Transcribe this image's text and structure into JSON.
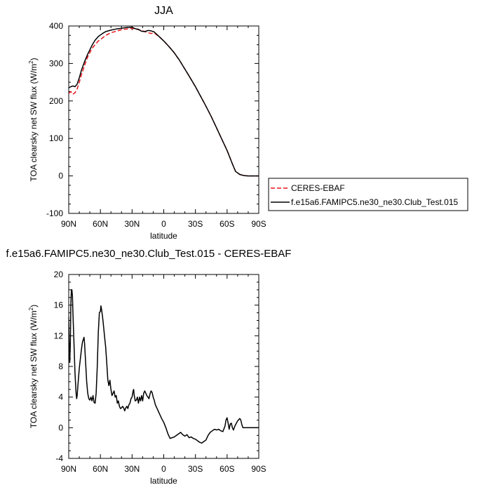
{
  "chart_data": [
    {
      "type": "line",
      "title": "JJA",
      "xlabel": "latitude",
      "ylabel": "TOA clearsky net SW flux (W/m",
      "ylabel_sup": "2",
      "ylabel_close": ")",
      "xlim": [
        90,
        -90
      ],
      "ylim": [
        -100,
        400
      ],
      "xticks": [
        90,
        60,
        30,
        0,
        -30,
        -60,
        -90
      ],
      "xtick_labels": [
        "90N",
        "60N",
        "30N",
        "0",
        "30S",
        "60S",
        "90S"
      ],
      "yticks": [
        -100,
        0,
        100,
        200,
        300,
        400
      ],
      "ytick_labels": [
        "-100",
        "0",
        "100",
        "200",
        "300",
        "400"
      ],
      "legend": "outside-right",
      "series": [
        {
          "name": "CERES-EBAF",
          "color": "#e8141c",
          "dash": true,
          "points": [
            [
              90,
              220
            ],
            [
              88,
              225
            ],
            [
              86,
              218
            ],
            [
              84,
              222
            ],
            [
              82,
              232
            ],
            [
              80,
              250
            ],
            [
              78,
              270
            ],
            [
              75,
              295
            ],
            [
              72,
              318
            ],
            [
              68,
              340
            ],
            [
              65,
              350
            ],
            [
              62,
              360
            ],
            [
              58,
              368
            ],
            [
              55,
              375
            ],
            [
              50,
              382
            ],
            [
              45,
              386
            ],
            [
              40,
              390
            ],
            [
              35,
              392
            ],
            [
              30,
              394
            ],
            [
              27,
              392
            ],
            [
              24,
              390
            ],
            [
              21,
              388
            ],
            [
              18,
              385
            ],
            [
              15,
              382
            ],
            [
              12,
              380
            ],
            [
              9,
              381
            ],
            [
              6,
              375
            ],
            [
              3,
              368
            ],
            [
              0,
              360
            ],
            [
              -5,
              345
            ],
            [
              -10,
              328
            ],
            [
              -15,
              308
            ],
            [
              -20,
              285
            ],
            [
              -25,
              262
            ],
            [
              -30,
              238
            ],
            [
              -35,
              212
            ],
            [
              -40,
              186
            ],
            [
              -45,
              158
            ],
            [
              -50,
              128
            ],
            [
              -55,
              98
            ],
            [
              -60,
              68
            ],
            [
              -65,
              32
            ],
            [
              -68,
              12
            ],
            [
              -72,
              4
            ],
            [
              -76,
              1
            ],
            [
              -80,
              0
            ],
            [
              -85,
              0
            ],
            [
              -90,
              0
            ]
          ]
        },
        {
          "name": "f.e15a6.FAMIPC5.ne30_ne30.Club_Test.015",
          "color": "#000000",
          "dash": false,
          "points": [
            [
              90,
              235
            ],
            [
              88,
              238
            ],
            [
              86,
              240
            ],
            [
              84,
              238
            ],
            [
              82,
              245
            ],
            [
              80,
              262
            ],
            [
              78,
              282
            ],
            [
              75,
              305
            ],
            [
              72,
              325
            ],
            [
              68,
              348
            ],
            [
              65,
              362
            ],
            [
              62,
              372
            ],
            [
              58,
              380
            ],
            [
              55,
              385
            ],
            [
              50,
              389
            ],
            [
              45,
              392
            ],
            [
              40,
              394
            ],
            [
              35,
              396
            ],
            [
              30,
              397
            ],
            [
              28,
              394
            ],
            [
              26,
              392
            ],
            [
              24,
              391
            ],
            [
              21,
              386
            ],
            [
              18,
              385
            ],
            [
              15,
              388
            ],
            [
              12,
              387
            ],
            [
              9,
              384
            ],
            [
              6,
              376
            ],
            [
              3,
              368
            ],
            [
              0,
              360
            ],
            [
              -5,
              345
            ],
            [
              -10,
              328
            ],
            [
              -15,
              308
            ],
            [
              -20,
              285
            ],
            [
              -25,
              262
            ],
            [
              -30,
              238
            ],
            [
              -35,
              212
            ],
            [
              -40,
              186
            ],
            [
              -45,
              158
            ],
            [
              -50,
              128
            ],
            [
              -55,
              98
            ],
            [
              -60,
              68
            ],
            [
              -65,
              32
            ],
            [
              -68,
              12
            ],
            [
              -72,
              4
            ],
            [
              -76,
              1
            ],
            [
              -80,
              0
            ],
            [
              -85,
              0
            ],
            [
              -90,
              0
            ]
          ]
        }
      ]
    },
    {
      "type": "line",
      "title": "f.e15a6.FAMIPC5.ne30_ne30.Club_Test.015 - CERES-EBAF",
      "xlabel": "latitude",
      "ylabel": "TOA clearsky net SW flux (W/m",
      "ylabel_sup": "2",
      "ylabel_close": ")",
      "xlim": [
        90,
        -90
      ],
      "ylim": [
        -4,
        20
      ],
      "xticks": [
        90,
        60,
        30,
        0,
        -30,
        -60,
        -90
      ],
      "xtick_labels": [
        "90N",
        "60N",
        "30N",
        "0",
        "30S",
        "60S",
        "90S"
      ],
      "yticks": [
        -4,
        0,
        4,
        8,
        12,
        16,
        20
      ],
      "ytick_labels": [
        "-4",
        "0",
        "4",
        "8",
        "12",
        "16",
        "20"
      ],
      "legend": "none",
      "series": [
        {
          "color": "#000000",
          "dash": false,
          "points": [
            [
              90,
              14.5
            ],
            [
              89.5,
              10
            ],
            [
              89,
              8.5
            ],
            [
              88.5,
              11
            ],
            [
              88,
              16
            ],
            [
              87.5,
              18
            ],
            [
              87,
              18
            ],
            [
              86.5,
              17.2
            ],
            [
              86,
              15
            ],
            [
              85,
              11
            ],
            [
              84,
              7
            ],
            [
              83,
              4.5
            ],
            [
              82.5,
              3.8
            ],
            [
              82,
              4.2
            ],
            [
              81,
              6
            ],
            [
              80,
              7.8
            ],
            [
              79,
              9
            ],
            [
              78,
              10.2
            ],
            [
              77,
              11.2
            ],
            [
              76,
              11.6
            ],
            [
              75.5,
              11.8
            ],
            [
              75,
              11
            ],
            [
              74,
              8.5
            ],
            [
              73,
              6
            ],
            [
              72,
              4.5
            ],
            [
              71,
              3.8
            ],
            [
              70,
              3.6
            ],
            [
              69,
              4
            ],
            [
              68,
              3.5
            ],
            [
              67,
              4.2
            ],
            [
              66,
              3.3
            ],
            [
              65,
              3.2
            ],
            [
              64,
              4.5
            ],
            [
              63,
              8
            ],
            [
              62,
              12.5
            ],
            [
              61,
              15
            ],
            [
              60,
              15.2
            ],
            [
              59.5,
              15.9
            ],
            [
              59,
              15.5
            ],
            [
              58,
              14.5
            ],
            [
              57,
              13.2
            ],
            [
              56,
              11.8
            ],
            [
              55,
              10.5
            ],
            [
              54,
              8.5
            ],
            [
              53,
              6.3
            ],
            [
              52,
              5.5
            ],
            [
              51,
              6.2
            ],
            [
              50,
              5
            ],
            [
              49,
              4.2
            ],
            [
              48,
              4.5
            ],
            [
              47,
              4.8
            ],
            [
              46,
              4
            ],
            [
              45,
              4.2
            ],
            [
              44,
              3.2
            ],
            [
              43,
              3.5
            ],
            [
              42,
              2.8
            ],
            [
              41,
              2.5
            ],
            [
              40,
              2.6
            ],
            [
              39,
              2.8
            ],
            [
              38,
              2.6
            ],
            [
              37,
              2.2
            ],
            [
              36,
              2.6
            ],
            [
              35,
              2.8
            ],
            [
              34,
              2.5
            ],
            [
              33,
              3
            ],
            [
              32,
              3.2
            ],
            [
              31,
              3.8
            ],
            [
              30,
              4
            ],
            [
              29,
              4.8
            ],
            [
              28.5,
              5
            ],
            [
              28,
              4.3
            ],
            [
              27,
              3.5
            ],
            [
              26,
              3.6
            ],
            [
              25,
              4
            ],
            [
              24,
              3.2
            ],
            [
              23,
              4
            ],
            [
              22,
              3.5
            ],
            [
              21,
              4.2
            ],
            [
              20,
              3.5
            ],
            [
              19,
              4.5
            ],
            [
              18,
              4.8
            ],
            [
              17,
              4.5
            ],
            [
              16,
              4.2
            ],
            [
              15,
              4
            ],
            [
              14,
              3.8
            ],
            [
              13,
              4.4
            ],
            [
              12,
              4.8
            ],
            [
              11,
              4.6
            ],
            [
              10,
              4
            ],
            [
              9,
              3.6
            ],
            [
              8,
              3
            ],
            [
              6,
              2.4
            ],
            [
              4,
              1.8
            ],
            [
              2,
              1.2
            ],
            [
              0,
              0.7
            ],
            [
              -2,
              0
            ],
            [
              -4,
              -0.8
            ],
            [
              -6,
              -1.4
            ],
            [
              -8,
              -1.3
            ],
            [
              -10,
              -1.2
            ],
            [
              -12,
              -1
            ],
            [
              -14,
              -0.8
            ],
            [
              -16,
              -0.6
            ],
            [
              -18,
              -0.9
            ],
            [
              -20,
              -1.1
            ],
            [
              -22,
              -0.9
            ],
            [
              -24,
              -1.3
            ],
            [
              -26,
              -1.2
            ],
            [
              -28,
              -1.4
            ],
            [
              -30,
              -1.5
            ],
            [
              -32,
              -1.7
            ],
            [
              -34,
              -1.9
            ],
            [
              -36,
              -2
            ],
            [
              -38,
              -1.8
            ],
            [
              -40,
              -1.6
            ],
            [
              -42,
              -1
            ],
            [
              -44,
              -0.6
            ],
            [
              -46,
              -0.4
            ],
            [
              -48,
              -0.2
            ],
            [
              -50,
              -0.3
            ],
            [
              -52,
              -0.2
            ],
            [
              -54,
              -0.4
            ],
            [
              -56,
              -0.5
            ],
            [
              -58,
              0.2
            ],
            [
              -59,
              1
            ],
            [
              -60,
              1.3
            ],
            [
              -61,
              0.6
            ],
            [
              -62,
              -0.2
            ],
            [
              -63,
              0.5
            ],
            [
              -64,
              0.6
            ],
            [
              -65,
              0
            ],
            [
              -66,
              -0.3
            ],
            [
              -67,
              0.1
            ],
            [
              -68,
              0.4
            ],
            [
              -70,
              0.9
            ],
            [
              -72,
              1.2
            ],
            [
              -73,
              1
            ],
            [
              -74,
              0.4
            ],
            [
              -75,
              0
            ],
            [
              -78,
              0
            ],
            [
              -82,
              0
            ],
            [
              -86,
              0
            ],
            [
              -90,
              0
            ]
          ]
        }
      ]
    }
  ]
}
